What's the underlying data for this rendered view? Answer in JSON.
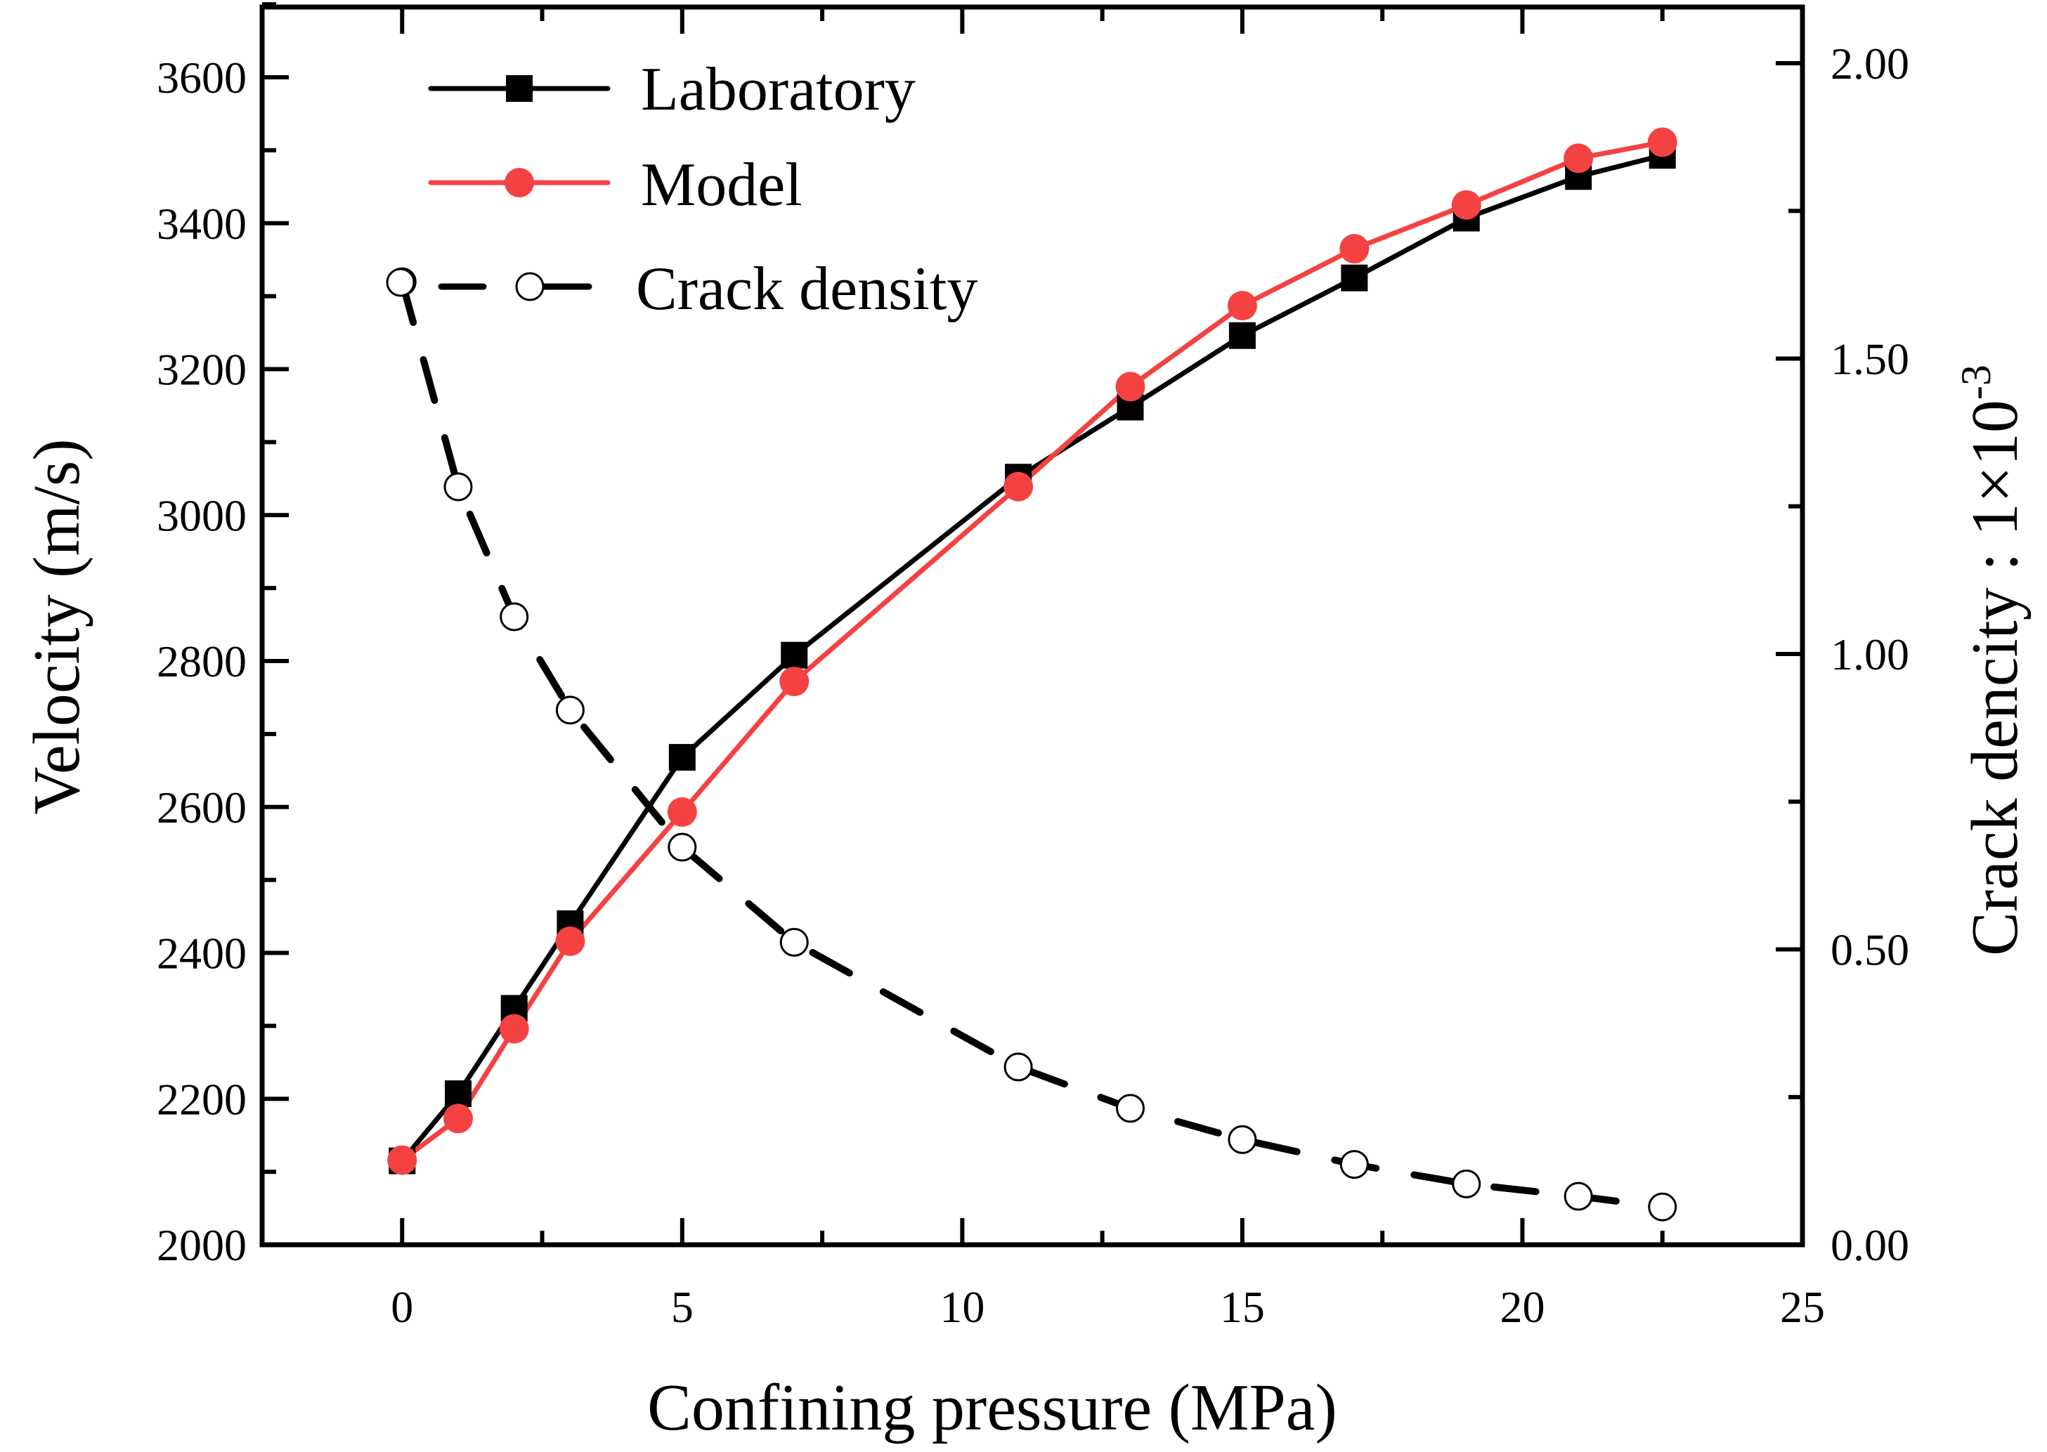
{
  "chart_data": {
    "type": "line",
    "title": "",
    "xlabel": "Confining pressure (MPa)",
    "ylabel": "Velocity (m/s)",
    "ylabel_right": "Crack dencity : 1×10",
    "ylabel_right_exponent": "-3",
    "xlim": [
      -2.5,
      25
    ],
    "ylim": [
      2000,
      3700
    ],
    "ylim_right": [
      0,
      2.1
    ],
    "grid": false,
    "legend_position": "top-left",
    "x_ticks": [
      0,
      5,
      10,
      15,
      20,
      25
    ],
    "x_tick_labels": [
      "0",
      "5",
      "10",
      "15",
      "20",
      "25"
    ],
    "y_ticks": [
      2000,
      2200,
      2400,
      2600,
      2800,
      3000,
      3200,
      3400,
      3600
    ],
    "y_tick_labels": [
      "2000",
      "2200",
      "2400",
      "2600",
      "2800",
      "3000",
      "3200",
      "3400",
      "3600"
    ],
    "y_right_ticks": [
      0,
      0.5,
      1.0,
      1.5,
      2.0
    ],
    "y_right_tick_labels": [
      "0.00",
      "0.50",
      "1.00",
      "1.50",
      "2.00"
    ],
    "x": [
      0,
      1,
      2,
      3,
      5,
      7,
      11,
      13,
      15,
      17,
      19,
      21,
      22.5
    ],
    "series": [
      {
        "name": "Laboratory",
        "axis": "left",
        "color": "#000000",
        "marker": "square",
        "line_style": "solid",
        "values": [
          2115,
          2207,
          2324,
          2440,
          2668,
          2808,
          3052,
          3148,
          3246,
          3325,
          3407,
          3464,
          3493
        ]
      },
      {
        "name": "Model",
        "axis": "left",
        "color": "#F44242",
        "marker": "circle",
        "line_style": "solid",
        "values": [
          2116,
          2173,
          2296,
          2416,
          2593,
          2772,
          3039,
          3176,
          3287,
          3365,
          3425,
          3489,
          3511
        ]
      },
      {
        "name": "Crack density",
        "axis": "right",
        "color": "#000000",
        "marker": "open-circle",
        "line_style": "dashed",
        "values": [
          1.63,
          1.283,
          1.063,
          0.905,
          0.673,
          0.512,
          0.301,
          0.231,
          0.178,
          0.136,
          0.103,
          0.082,
          0.064
        ]
      }
    ]
  }
}
